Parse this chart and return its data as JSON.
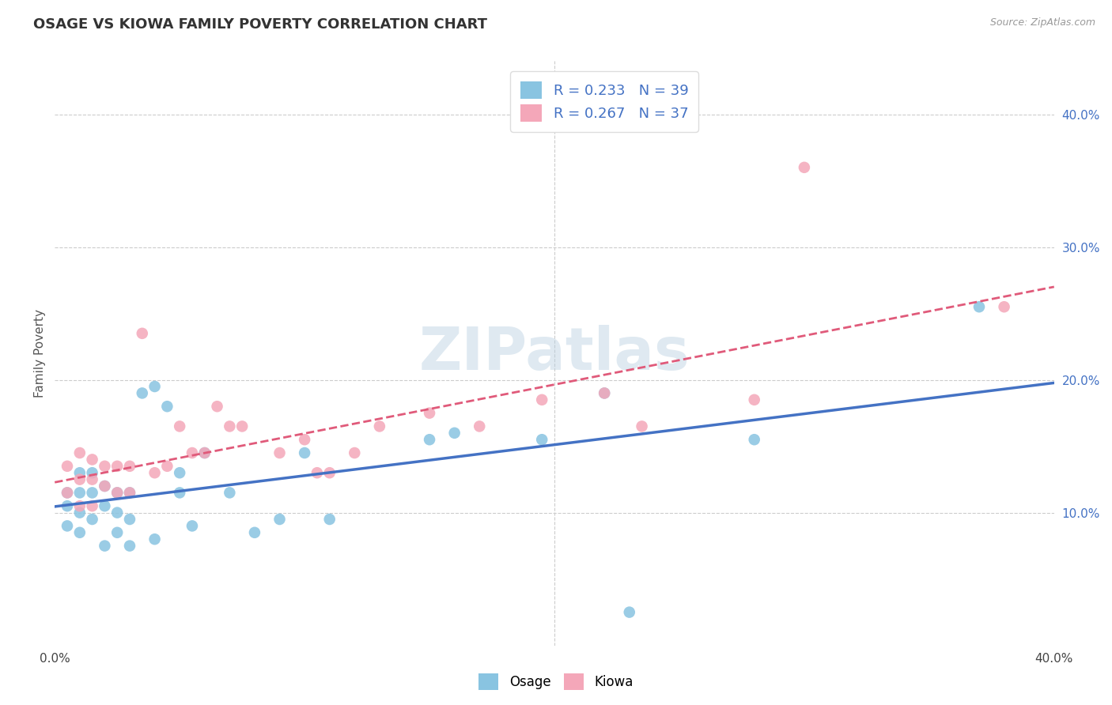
{
  "title": "OSAGE VS KIOWA FAMILY POVERTY CORRELATION CHART",
  "source_text": "Source: ZipAtlas.com",
  "ylabel": "Family Poverty",
  "xlim": [
    0.0,
    0.4
  ],
  "ylim": [
    0.0,
    0.44
  ],
  "xtick_labels": [
    "0.0%",
    "",
    "",
    "",
    "40.0%"
  ],
  "xtick_vals": [
    0.0,
    0.1,
    0.2,
    0.3,
    0.4
  ],
  "ytick_labels_right": [
    "10.0%",
    "20.0%",
    "30.0%",
    "40.0%"
  ],
  "ytick_vals_right": [
    0.1,
    0.2,
    0.3,
    0.4
  ],
  "grid_color": "#cccccc",
  "background_color": "#ffffff",
  "osage_color": "#89c4e1",
  "kiowa_color": "#f4a7b9",
  "osage_line_color": "#4472c4",
  "kiowa_line_color": "#e05a7a",
  "R_osage": 0.233,
  "N_osage": 39,
  "R_kiowa": 0.267,
  "N_kiowa": 37,
  "legend_text_color": "#4472c4",
  "watermark": "ZIPatlas",
  "osage_scatter_x": [
    0.005,
    0.005,
    0.005,
    0.01,
    0.01,
    0.01,
    0.01,
    0.015,
    0.015,
    0.015,
    0.02,
    0.02,
    0.02,
    0.025,
    0.025,
    0.025,
    0.03,
    0.03,
    0.03,
    0.035,
    0.04,
    0.04,
    0.045,
    0.05,
    0.05,
    0.055,
    0.06,
    0.07,
    0.08,
    0.09,
    0.1,
    0.11,
    0.15,
    0.16,
    0.195,
    0.22,
    0.23,
    0.28,
    0.37
  ],
  "osage_scatter_y": [
    0.115,
    0.105,
    0.09,
    0.13,
    0.115,
    0.1,
    0.085,
    0.13,
    0.115,
    0.095,
    0.12,
    0.105,
    0.075,
    0.115,
    0.1,
    0.085,
    0.115,
    0.095,
    0.075,
    0.19,
    0.195,
    0.08,
    0.18,
    0.13,
    0.115,
    0.09,
    0.145,
    0.115,
    0.085,
    0.095,
    0.145,
    0.095,
    0.155,
    0.16,
    0.155,
    0.19,
    0.025,
    0.155,
    0.255
  ],
  "kiowa_scatter_x": [
    0.005,
    0.005,
    0.01,
    0.01,
    0.01,
    0.015,
    0.015,
    0.015,
    0.02,
    0.02,
    0.025,
    0.025,
    0.03,
    0.03,
    0.035,
    0.04,
    0.045,
    0.05,
    0.055,
    0.06,
    0.065,
    0.07,
    0.075,
    0.09,
    0.1,
    0.105,
    0.11,
    0.12,
    0.13,
    0.15,
    0.17,
    0.195,
    0.22,
    0.235,
    0.28,
    0.3,
    0.38
  ],
  "kiowa_scatter_y": [
    0.135,
    0.115,
    0.145,
    0.125,
    0.105,
    0.14,
    0.125,
    0.105,
    0.135,
    0.12,
    0.135,
    0.115,
    0.135,
    0.115,
    0.235,
    0.13,
    0.135,
    0.165,
    0.145,
    0.145,
    0.18,
    0.165,
    0.165,
    0.145,
    0.155,
    0.13,
    0.13,
    0.145,
    0.165,
    0.175,
    0.165,
    0.185,
    0.19,
    0.165,
    0.185,
    0.36,
    0.255
  ]
}
